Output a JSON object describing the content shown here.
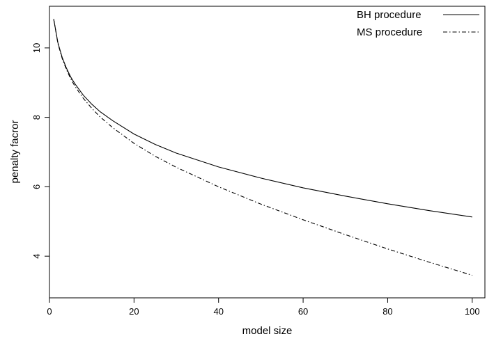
{
  "chart_data": {
    "type": "line",
    "xlabel": "model size",
    "ylabel": "penalty facror",
    "xlim": [
      0,
      103
    ],
    "ylim": [
      2.8,
      11.2
    ],
    "x_ticks": [
      0,
      20,
      40,
      60,
      80,
      100
    ],
    "y_ticks": [
      4,
      6,
      8,
      10
    ],
    "legend_position": "top-right",
    "series": [
      {
        "name": "BH procedure",
        "line_style": "solid",
        "x": [
          1,
          2,
          3,
          4,
          5,
          6,
          8,
          10,
          12,
          15,
          20,
          25,
          30,
          40,
          50,
          60,
          70,
          80,
          90,
          100
        ],
        "values": [
          10.83,
          10.15,
          9.73,
          9.42,
          9.17,
          8.97,
          8.64,
          8.38,
          8.16,
          7.9,
          7.52,
          7.22,
          6.97,
          6.57,
          6.25,
          5.97,
          5.73,
          5.51,
          5.31,
          5.13
        ]
      },
      {
        "name": "MS procedure",
        "line_style": "dash-dot",
        "x": [
          1,
          2,
          3,
          4,
          5,
          6,
          8,
          10,
          12,
          15,
          20,
          25,
          30,
          40,
          50,
          60,
          70,
          80,
          90,
          100
        ],
        "values": [
          10.83,
          10.13,
          9.7,
          9.38,
          9.12,
          8.9,
          8.55,
          8.26,
          8.01,
          7.7,
          7.25,
          6.88,
          6.56,
          6.0,
          5.5,
          5.05,
          4.62,
          4.21,
          3.82,
          3.45
        ]
      }
    ]
  }
}
